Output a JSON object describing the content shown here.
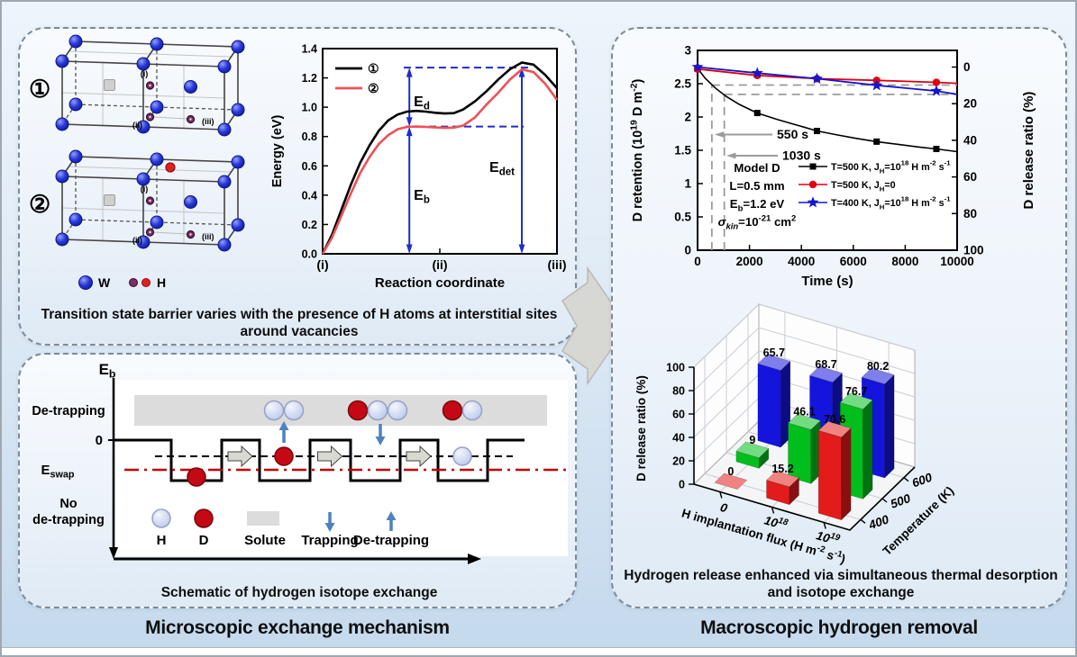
{
  "colors": {
    "series_black": "#000000",
    "series_red": "#e00010",
    "series_blue": "#1515cd",
    "energy_curve1": "#000000",
    "energy_curve2": "#ef5055",
    "annotation_blue": "#1f2ccc",
    "guide_gray": "#9b9b9b",
    "eswap_red": "#c00000",
    "trap_arrow_blue": "#4f81bd",
    "w_atom_blue": "#2838d8",
    "h_atom_light": "#ccd6f2",
    "d_atom_red": "#c40914",
    "solute_gray": "#dcdcdc",
    "bar_red": "#e31b1b",
    "bar_green": "#00bf1c",
    "bar_blue": "#1414dc"
  },
  "footer": {
    "left": "Microscopic exchange mechanism",
    "right": "Macroscopic hydrogen removal"
  },
  "top_left": {
    "caption": "Transition state barrier varies with the presence of H atoms at interstitial sites around vacancies",
    "crystal": {
      "struct1_label": "①",
      "struct2_label": "②",
      "site_i": "(i)",
      "site_ii": "(ii)",
      "site_iii": "(iii)",
      "legend_w": "W",
      "legend_h": "H"
    }
  },
  "bottom_left": {
    "caption": "Schematic of hydrogen isotope exchange",
    "labels": {
      "eb": [
        {
          "t": "E"
        },
        {
          "t": "b",
          "m": "sub"
        }
      ],
      "zero": "0",
      "detrapping_region": "De-trapping",
      "eswap": [
        {
          "t": "E"
        },
        {
          "t": "swap",
          "m": "sub"
        }
      ],
      "no_detrapping_line1": "No",
      "no_detrapping_line2": "de-trapping"
    },
    "legend": {
      "h": "H",
      "d": "D",
      "solute": "Solute",
      "trapping": "Trapping",
      "detrapping": "De-trapping"
    }
  },
  "right": {
    "caption": "Hydrogen release enhanced via simultaneous thermal desorption and isotope exchange"
  },
  "chart_data": [
    {
      "type": "line",
      "title": "Transition state energy profile",
      "xlabel": "Reaction coordinate",
      "ylabel": "Energy (eV)",
      "x_ticks": [
        "(i)",
        "(ii)",
        "(iii)"
      ],
      "ylim": [
        0,
        1.4
      ],
      "y_ticks": [
        0.0,
        0.2,
        0.4,
        0.6,
        0.8,
        1.0,
        1.2,
        1.4
      ],
      "series": [
        {
          "name": "①",
          "color": "#000000",
          "x": [
            0,
            0.04,
            0.08,
            0.12,
            0.16,
            0.2,
            0.24,
            0.28,
            0.32,
            0.36,
            0.4,
            0.44,
            0.48,
            0.52,
            0.56,
            0.6,
            0.65,
            0.7,
            0.75,
            0.8,
            0.85,
            0.9,
            0.95,
            1.0
          ],
          "y": [
            0,
            0.13,
            0.3,
            0.47,
            0.62,
            0.74,
            0.84,
            0.91,
            0.95,
            0.97,
            0.975,
            0.97,
            0.962,
            0.957,
            0.96,
            0.985,
            1.04,
            1.11,
            1.19,
            1.26,
            1.305,
            1.29,
            1.22,
            1.13
          ]
        },
        {
          "name": "②",
          "color": "#ef5055",
          "x": [
            0,
            0.04,
            0.08,
            0.12,
            0.16,
            0.2,
            0.24,
            0.28,
            0.32,
            0.36,
            0.4,
            0.44,
            0.48,
            0.52,
            0.56,
            0.6,
            0.65,
            0.7,
            0.75,
            0.8,
            0.85,
            0.9,
            0.95,
            1.0
          ],
          "y": [
            0,
            0.11,
            0.26,
            0.41,
            0.55,
            0.66,
            0.75,
            0.81,
            0.85,
            0.866,
            0.868,
            0.866,
            0.862,
            0.859,
            0.861,
            0.875,
            0.93,
            1.02,
            1.1,
            1.19,
            1.258,
            1.24,
            1.16,
            1.05
          ]
        }
      ],
      "annotations": {
        "e_d": {
          "x": 0.37,
          "y1": 0.868,
          "y2": 1.27
        },
        "e_b": {
          "x": 0.37,
          "y1": 0.0,
          "y2": 0.868
        },
        "e_det": {
          "x": 0.85,
          "y1": 0.0,
          "y2": 1.27
        },
        "dash_top": {
          "y": 1.27,
          "x1": 0.346,
          "x2": 0.885
        },
        "dash_mid": {
          "y": 0.868,
          "x1": 0.354,
          "x2": 0.858
        }
      },
      "labels": {
        "ed": [
          {
            "t": "E"
          },
          {
            "t": "d",
            "m": "sub"
          }
        ],
        "eb": [
          {
            "t": "E"
          },
          {
            "t": "b",
            "m": "sub"
          }
        ],
        "edet": [
          {
            "t": "E"
          },
          {
            "t": "det",
            "m": "sub"
          }
        ]
      }
    },
    {
      "type": "line",
      "title": "D retention vs time",
      "xlabel": "Time (s)",
      "ylabel_left_segments": [
        {
          "t": "D retention (10"
        },
        {
          "t": "19",
          "m": "sup"
        },
        {
          "t": " D m"
        },
        {
          "t": "-2",
          "m": "sup"
        },
        {
          "t": ")"
        }
      ],
      "ylabel_right": "D release ratio (%)",
      "xlim": [
        0,
        10000
      ],
      "x_ticks": [
        0,
        2000,
        4000,
        6000,
        8000,
        10000
      ],
      "ylim_left": [
        0,
        3
      ],
      "y_ticks_left": [
        0,
        0.5,
        1,
        1.5,
        2,
        2.5,
        3
      ],
      "y_ticks_right": [
        0,
        20,
        40,
        60,
        80,
        100
      ],
      "right_axis_zero_at_retention": 2.75,
      "series": [
        {
          "name_segments": [
            {
              "t": "T=500 K, J"
            },
            {
              "t": "H",
              "m": "sub"
            },
            {
              "t": "=10"
            },
            {
              "t": "18",
              "m": "sup"
            },
            {
              "t": " H m"
            },
            {
              "t": "-2",
              "m": "sup"
            },
            {
              "t": " s"
            },
            {
              "t": "-1",
              "m": "sup"
            }
          ],
          "color": "#000000",
          "marker": "square",
          "x": [
            0,
            300,
            700,
            1100,
            1600,
            2300,
            3100,
            3900,
            4600,
            5400,
            6100,
            6900,
            7700,
            8500,
            9200,
            10000
          ],
          "y": [
            2.73,
            2.58,
            2.43,
            2.31,
            2.19,
            2.06,
            1.96,
            1.87,
            1.79,
            1.73,
            1.68,
            1.63,
            1.59,
            1.55,
            1.52,
            1.48
          ],
          "marker_x": [
            2300,
            4600,
            6900,
            9200
          ],
          "marker_y": [
            2.06,
            1.79,
            1.63,
            1.52
          ]
        },
        {
          "name_segments": [
            {
              "t": "T=500 K, J"
            },
            {
              "t": "H",
              "m": "sub"
            },
            {
              "t": "=0"
            }
          ],
          "color": "#e00010",
          "marker": "circle",
          "x": [
            0,
            2300,
            4600,
            6900,
            9200,
            10000
          ],
          "y": [
            2.72,
            2.625,
            2.575,
            2.55,
            2.52,
            2.505
          ],
          "marker_x": [
            0,
            2300,
            4600,
            6900,
            9200
          ],
          "marker_y": [
            2.72,
            2.625,
            2.575,
            2.55,
            2.52
          ]
        },
        {
          "name_segments": [
            {
              "t": "T=400 K, J"
            },
            {
              "t": "H",
              "m": "sub"
            },
            {
              "t": "=10"
            },
            {
              "t": "18",
              "m": "sup"
            },
            {
              "t": " H m"
            },
            {
              "t": "-2",
              "m": "sup"
            },
            {
              "t": " s"
            },
            {
              "t": "-1",
              "m": "sup"
            }
          ],
          "color": "#1515cd",
          "marker": "star",
          "x": [
            0,
            2300,
            4600,
            6900,
            9200,
            10000
          ],
          "y": [
            2.75,
            2.66,
            2.575,
            2.475,
            2.39,
            2.34
          ],
          "marker_x": [
            0,
            2300,
            4600,
            6900,
            9200
          ],
          "marker_y": [
            2.75,
            2.66,
            2.575,
            2.475,
            2.39
          ]
        }
      ],
      "guides": {
        "t1": 550,
        "t1_label": "550 s",
        "y1": 2.48,
        "t2": 1030,
        "t2_label": "1030 s",
        "y2": 2.34
      },
      "info_segments": [
        [
          {
            "t": "Model D"
          }
        ],
        [
          {
            "t": "L=0.5 mm"
          }
        ],
        [
          {
            "t": "E"
          },
          {
            "t": "b",
            "m": "sub"
          },
          {
            "t": "=1.2 eV"
          }
        ],
        [
          {
            "t": "σ",
            "i": true
          },
          {
            "t": "kin",
            "m": "sub",
            "i": true
          },
          {
            "t": "=10"
          },
          {
            "t": "-21",
            "m": "sup"
          },
          {
            "t": " cm"
          },
          {
            "t": "2",
            "m": "sup"
          }
        ]
      ]
    },
    {
      "type": "bar3d",
      "title": "D release ratio vs H implantation flux and temperature",
      "zlabel": "D release ratio (%)",
      "xlabel_segments": [
        {
          "t": "H implantation flux (H m"
        },
        {
          "t": "-2",
          "m": "sup"
        },
        {
          "t": " s"
        },
        {
          "t": "-1",
          "m": "sup"
        },
        {
          "t": ")"
        }
      ],
      "ylabel": "Temperature (K)",
      "x_categories_segments": [
        [
          {
            "t": "0"
          }
        ],
        [
          {
            "t": "10"
          },
          {
            "t": "18",
            "m": "sup"
          }
        ],
        [
          {
            "t": "10"
          },
          {
            "t": "19",
            "m": "sup"
          }
        ]
      ],
      "y_categories": [
        "400",
        "500",
        "600"
      ],
      "zlim": [
        0,
        100
      ],
      "z_ticks": [
        0,
        20,
        40,
        60,
        80,
        100
      ],
      "series": [
        {
          "name": "400 K",
          "color": "#e31b1b",
          "values": [
            0,
            15.2,
            70.6
          ]
        },
        {
          "name": "500 K",
          "color": "#00bf1c",
          "values": [
            9,
            46.1,
            76.7
          ]
        },
        {
          "name": "600 K",
          "color": "#1414dc",
          "values": [
            65.7,
            68.7,
            80.2
          ]
        }
      ]
    }
  ]
}
